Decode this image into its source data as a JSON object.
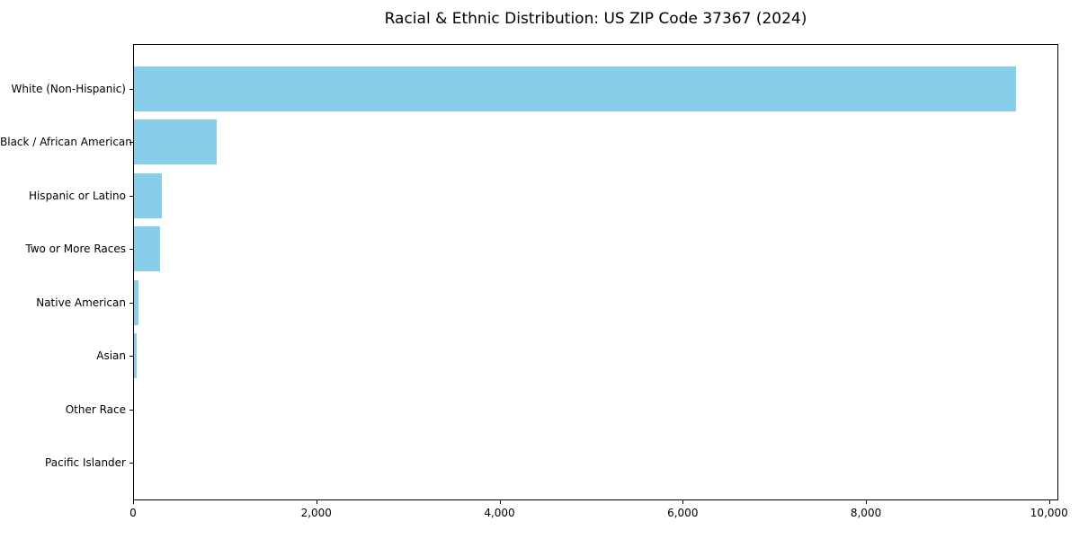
{
  "title": "Racial & Ethnic Distribution: US ZIP Code 37367 (2024)",
  "colors": {
    "bar": "#87CEEB",
    "axis": "#000000",
    "text": "#000000",
    "background": "#ffffff"
  },
  "chart_data": {
    "type": "bar",
    "orientation": "horizontal",
    "title": "Racial & Ethnic Distribution: US ZIP Code 37367 (2024)",
    "categories": [
      "White (Non-Hispanic)",
      "Black / African American",
      "Hispanic or Latino",
      "Two or More Races",
      "Native American",
      "Asian",
      "Other Race",
      "Pacific Islander"
    ],
    "values": [
      9630,
      900,
      305,
      280,
      50,
      25,
      0,
      0
    ],
    "xlabel": "",
    "ylabel": "",
    "xlim": [
      0,
      10100
    ],
    "x_ticks": [
      0,
      2000,
      4000,
      6000,
      8000,
      10000
    ],
    "x_tick_labels": [
      "0",
      "2,000",
      "4,000",
      "6,000",
      "8,000",
      "10,000"
    ],
    "grid": false,
    "legend_position": "none",
    "bar_color": "#87CEEB"
  }
}
